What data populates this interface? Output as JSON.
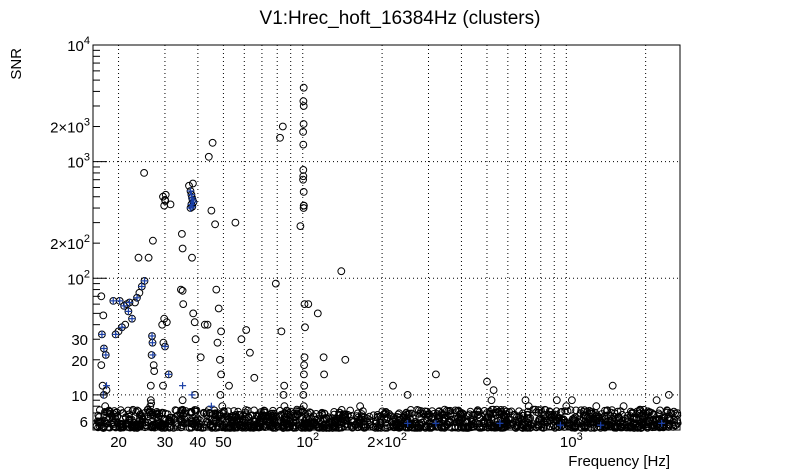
{
  "chart_data": {
    "type": "scatter",
    "title": "V1:Hrec_hoft_16384Hz (clusters)",
    "xlabel": "Frequency [Hz]",
    "ylabel": "SNR",
    "x_scale": "log",
    "y_scale": "log",
    "xlim": [
      16,
      2700
    ],
    "ylim": [
      5,
      10000
    ],
    "grid": true,
    "x_ticks": [
      {
        "value": 20,
        "label": "20"
      },
      {
        "value": 30,
        "label": "30"
      },
      {
        "value": 40,
        "label": "40"
      },
      {
        "value": 50,
        "label": "50"
      },
      {
        "value": 100,
        "label": "10",
        "sup": "2"
      },
      {
        "value": 200,
        "label": "2×10",
        "sup": "2"
      },
      {
        "value": 1000,
        "label": "10",
        "sup": "3"
      }
    ],
    "y_ticks": [
      {
        "value": 6,
        "label": "6"
      },
      {
        "value": 10,
        "label": "10"
      },
      {
        "value": 20,
        "label": "20"
      },
      {
        "value": 30,
        "label": "30"
      },
      {
        "value": 100,
        "label": "10",
        "sup": "2"
      },
      {
        "value": 200,
        "label": "2×10",
        "sup": "2"
      },
      {
        "value": 1000,
        "label": "10",
        "sup": "3"
      },
      {
        "value": 2000,
        "label": "2×10",
        "sup": "3"
      },
      {
        "value": 10000,
        "label": "10",
        "sup": "4"
      }
    ],
    "series": [
      {
        "marker": "circle",
        "color": "#000000",
        "points": [
          [
            17.2,
            70
          ],
          [
            17.5,
            48
          ],
          [
            17.3,
            33
          ],
          [
            17.6,
            25
          ],
          [
            17.9,
            22
          ],
          [
            17.2,
            18
          ],
          [
            17.4,
            12
          ],
          [
            17.6,
            10
          ],
          [
            18.0,
            11
          ],
          [
            17.8,
            8
          ],
          [
            19.1,
            64
          ],
          [
            20.2,
            64
          ],
          [
            21.0,
            58
          ],
          [
            21.5,
            60
          ],
          [
            22.0,
            62
          ],
          [
            23.1,
            62
          ],
          [
            23.5,
            68
          ],
          [
            24.0,
            75
          ],
          [
            24.5,
            85
          ],
          [
            25.1,
            95
          ],
          [
            19.5,
            33
          ],
          [
            20.0,
            35
          ],
          [
            20.6,
            38
          ],
          [
            21.2,
            40
          ],
          [
            21.8,
            52
          ],
          [
            22.5,
            45
          ],
          [
            23.8,
            150
          ],
          [
            25.0,
            800
          ],
          [
            26.0,
            150
          ],
          [
            27.0,
            210
          ],
          [
            26.8,
            32
          ],
          [
            26.9,
            28
          ],
          [
            26.7,
            22
          ],
          [
            27.2,
            18
          ],
          [
            27.3,
            16
          ],
          [
            26.5,
            12
          ],
          [
            26.5,
            9
          ],
          [
            26.6,
            8.5
          ],
          [
            26.4,
            8
          ],
          [
            29.5,
            500
          ],
          [
            30.0,
            470
          ],
          [
            30.2,
            520
          ],
          [
            30.1,
            460
          ],
          [
            29.8,
            420
          ],
          [
            31.5,
            430
          ],
          [
            29.3,
            40
          ],
          [
            29.8,
            45
          ],
          [
            30.5,
            42
          ],
          [
            29.6,
            28
          ],
          [
            30.0,
            26
          ],
          [
            31.0,
            15
          ],
          [
            29.5,
            12
          ],
          [
            37.0,
            620
          ],
          [
            37.5,
            560
          ],
          [
            37.8,
            520
          ],
          [
            38.0,
            490
          ],
          [
            38.2,
            470
          ],
          [
            38.5,
            450
          ],
          [
            37.8,
            430
          ],
          [
            38.1,
            410
          ],
          [
            37.5,
            400
          ],
          [
            38.3,
            650
          ],
          [
            34.8,
            240
          ],
          [
            35.0,
            180
          ],
          [
            34.5,
            80
          ],
          [
            35.0,
            78
          ],
          [
            35.2,
            60
          ],
          [
            35.0,
            9
          ],
          [
            38.0,
            150
          ],
          [
            38.4,
            50
          ],
          [
            38.9,
            42
          ],
          [
            39.2,
            30
          ],
          [
            39.0,
            10
          ],
          [
            41.0,
            21
          ],
          [
            42.5,
            40
          ],
          [
            43.5,
            40
          ],
          [
            44.0,
            1100
          ],
          [
            45.5,
            1450
          ],
          [
            45.0,
            380
          ],
          [
            46.5,
            290
          ],
          [
            47.0,
            80
          ],
          [
            48.0,
            55
          ],
          [
            49.0,
            35
          ],
          [
            47.5,
            28
          ],
          [
            48.5,
            20
          ],
          [
            49.0,
            15
          ],
          [
            48.7,
            10
          ],
          [
            49.5,
            8
          ],
          [
            52.5,
            12
          ],
          [
            55.5,
            300
          ],
          [
            58.5,
            30
          ],
          [
            61.0,
            36
          ],
          [
            63.0,
            23
          ],
          [
            65.5,
            14
          ],
          [
            79.0,
            90
          ],
          [
            82.0,
            1600
          ],
          [
            84.0,
            2000
          ],
          [
            83.0,
            35
          ],
          [
            85.0,
            12
          ],
          [
            84.5,
            10
          ],
          [
            85.2,
            8
          ],
          [
            98.0,
            280
          ],
          [
            100.5,
            850
          ],
          [
            100.5,
            750
          ],
          [
            100.3,
            700
          ],
          [
            100.8,
            550
          ],
          [
            100.8,
            420
          ],
          [
            101.0,
            420
          ],
          [
            100.7,
            2100
          ],
          [
            100.3,
            1800
          ],
          [
            100.5,
            1400
          ],
          [
            100.7,
            400
          ],
          [
            100.8,
            3000
          ],
          [
            100.6,
            3300
          ],
          [
            100.8,
            4300
          ],
          [
            101.5,
            60
          ],
          [
            102.0,
            38
          ],
          [
            101.5,
            21
          ],
          [
            101.2,
            18
          ],
          [
            101.0,
            15
          ],
          [
            101.3,
            12
          ],
          [
            100.5,
            10
          ],
          [
            100.9,
            8
          ],
          [
            105.0,
            60
          ],
          [
            114.0,
            50
          ],
          [
            120.0,
            21
          ],
          [
            120.5,
            15
          ],
          [
            140.0,
            115
          ],
          [
            145.0,
            20
          ],
          [
            165.0,
            8
          ],
          [
            220.0,
            12
          ],
          [
            250.0,
            10
          ],
          [
            320.0,
            15
          ],
          [
            500.0,
            13
          ],
          [
            520.0,
            9
          ],
          [
            530.0,
            11
          ],
          [
            700.0,
            9
          ],
          [
            720.0,
            8
          ],
          [
            920.0,
            9
          ],
          [
            1000.0,
            8
          ],
          [
            1050.0,
            9
          ],
          [
            1300.0,
            8
          ],
          [
            1500.0,
            12
          ],
          [
            1650.0,
            8
          ],
          [
            2200.0,
            9
          ],
          [
            2450.0,
            10
          ]
        ]
      },
      {
        "marker": "plus",
        "color": "#1a3fa6",
        "points": [
          [
            17.3,
            33
          ],
          [
            17.6,
            25
          ],
          [
            17.9,
            22
          ],
          [
            17.5,
            10
          ],
          [
            18.0,
            12
          ],
          [
            19.1,
            64
          ],
          [
            20.2,
            64
          ],
          [
            21.0,
            58
          ],
          [
            22.0,
            62
          ],
          [
            23.5,
            68
          ],
          [
            24.5,
            85
          ],
          [
            25.1,
            95
          ],
          [
            19.5,
            33
          ],
          [
            20.6,
            38
          ],
          [
            21.8,
            52
          ],
          [
            22.5,
            45
          ],
          [
            26.8,
            32
          ],
          [
            26.9,
            28
          ],
          [
            27.0,
            22
          ],
          [
            30.0,
            26
          ],
          [
            31.0,
            15
          ],
          [
            37.5,
            560
          ],
          [
            37.8,
            520
          ],
          [
            38.0,
            490
          ],
          [
            38.2,
            470
          ],
          [
            38.5,
            450
          ],
          [
            37.8,
            430
          ],
          [
            38.1,
            410
          ],
          [
            37.5,
            400
          ],
          [
            35.0,
            12
          ],
          [
            38.0,
            10
          ],
          [
            45.0,
            8
          ],
          [
            250.0,
            5.7
          ],
          [
            320.0,
            5.7
          ],
          [
            560.0,
            5.7
          ],
          [
            950.0,
            5.5
          ],
          [
            1350.0,
            5.5
          ],
          [
            2300.0,
            5.7
          ]
        ]
      }
    ],
    "noise_floor": {
      "snr_min": 5.2,
      "snr_max": 7.5,
      "freq_min": 16.5,
      "freq_max": 2650
    }
  }
}
